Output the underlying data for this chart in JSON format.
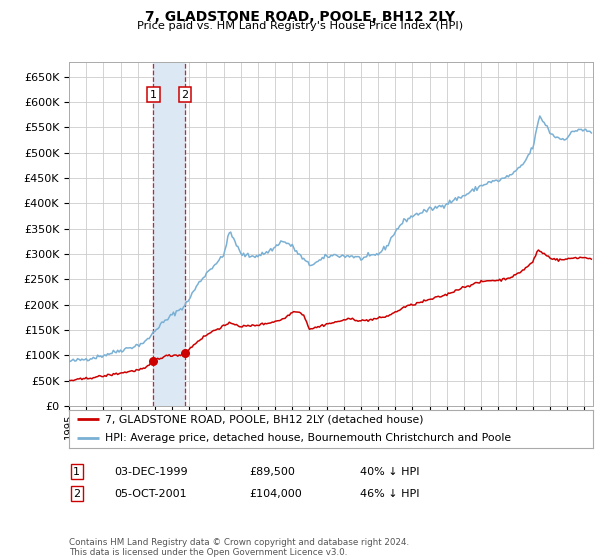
{
  "title": "7, GLADSTONE ROAD, POOLE, BH12 2LY",
  "subtitle": "Price paid vs. HM Land Registry's House Price Index (HPI)",
  "legend_line1": "7, GLADSTONE ROAD, POOLE, BH12 2LY (detached house)",
  "legend_line2": "HPI: Average price, detached house, Bournemouth Christchurch and Poole",
  "transaction1_date": "03-DEC-1999",
  "transaction1_price": "£89,500",
  "transaction1_hpi": "40% ↓ HPI",
  "transaction1_x": 1999.92,
  "transaction1_y": 89500,
  "transaction2_date": "05-OCT-2001",
  "transaction2_price": "£104,000",
  "transaction2_hpi": "46% ↓ HPI",
  "transaction2_x": 2001.75,
  "transaction2_y": 104000,
  "copyright": "Contains HM Land Registry data © Crown copyright and database right 2024.\nThis data is licensed under the Open Government Licence v3.0.",
  "hpi_color": "#7ab0d4",
  "price_color": "#cc0000",
  "shading_color": "#dce9f5",
  "grid_color": "#cccccc",
  "bg_color": "#ffffff",
  "ylim": [
    0,
    680000
  ],
  "xlim_start": 1995.0,
  "xlim_end": 2025.5
}
